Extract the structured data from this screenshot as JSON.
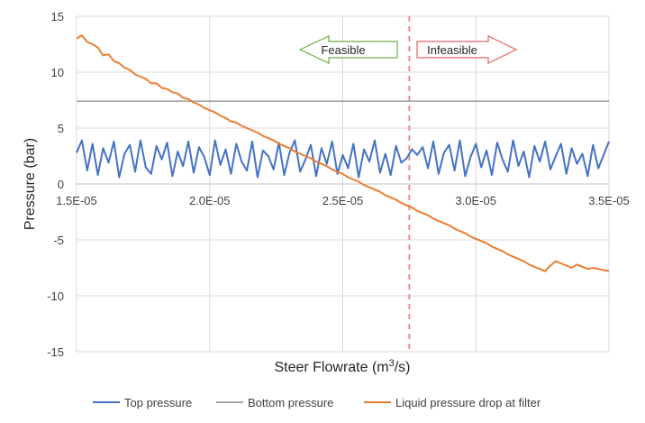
{
  "chart_data": {
    "type": "line",
    "title": "",
    "xlabel_main": "Steer Flowrate (m",
    "xlabel_sup": "3",
    "xlabel_end": "/s)",
    "ylabel": "Pressure (bar)",
    "xlim": [
      1.5e-05,
      3.5e-05
    ],
    "ylim": [
      -15,
      15
    ],
    "x_ticks": [
      1.5e-05,
      2e-05,
      2.5e-05,
      3e-05,
      3.5e-05
    ],
    "x_tick_labels": [
      "1.5E-05",
      "2.0E-05",
      "2.5E-05",
      "3.0E-05",
      "3.5E-05"
    ],
    "y_ticks": [
      15,
      10,
      5,
      0,
      -5,
      -10,
      -15
    ],
    "y_tick_labels": [
      "15",
      "10",
      "5",
      "0",
      "-5",
      "-10",
      "-15"
    ],
    "grid": true,
    "legend_position": "bottom",
    "threshold_x": 2.75e-05,
    "series": [
      {
        "name": "Top pressure",
        "color": "#4472C4",
        "x": [
          1.5e-05,
          1.52e-05,
          1.54e-05,
          1.56e-05,
          1.58e-05,
          1.6e-05,
          1.62e-05,
          1.64e-05,
          1.66e-05,
          1.68e-05,
          1.7e-05,
          1.72e-05,
          1.74e-05,
          1.76e-05,
          1.78e-05,
          1.8e-05,
          1.82e-05,
          1.84e-05,
          1.86e-05,
          1.88e-05,
          1.9e-05,
          1.92e-05,
          1.94e-05,
          1.96e-05,
          1.98e-05,
          2e-05,
          2.02e-05,
          2.04e-05,
          2.06e-05,
          2.08e-05,
          2.1e-05,
          2.12e-05,
          2.14e-05,
          2.16e-05,
          2.18e-05,
          2.2e-05,
          2.22e-05,
          2.24e-05,
          2.26e-05,
          2.28e-05,
          2.3e-05,
          2.32e-05,
          2.34e-05,
          2.36e-05,
          2.38e-05,
          2.4e-05,
          2.42e-05,
          2.44e-05,
          2.46e-05,
          2.48e-05,
          2.5e-05,
          2.52e-05,
          2.54e-05,
          2.56e-05,
          2.58e-05,
          2.6e-05,
          2.62e-05,
          2.64e-05,
          2.66e-05,
          2.68e-05,
          2.7e-05,
          2.72e-05,
          2.74e-05,
          2.76e-05,
          2.78e-05,
          2.8e-05,
          2.82e-05,
          2.84e-05,
          2.86e-05,
          2.88e-05,
          2.9e-05,
          2.92e-05,
          2.94e-05,
          2.96e-05,
          2.98e-05,
          3e-05,
          3.02e-05,
          3.04e-05,
          3.06e-05,
          3.08e-05,
          3.1e-05,
          3.12e-05,
          3.14e-05,
          3.16e-05,
          3.18e-05,
          3.2e-05,
          3.22e-05,
          3.24e-05,
          3.26e-05,
          3.28e-05,
          3.3e-05,
          3.32e-05,
          3.34e-05,
          3.36e-05,
          3.38e-05,
          3.4e-05,
          3.42e-05,
          3.44e-05,
          3.46e-05,
          3.48e-05,
          3.5e-05
        ],
        "values": [
          2.8,
          3.9,
          1.2,
          3.6,
          0.8,
          3.2,
          1.9,
          3.8,
          0.6,
          2.7,
          3.5,
          1.1,
          3.9,
          1.5,
          0.9,
          3.4,
          2.2,
          3.7,
          0.7,
          2.9,
          1.6,
          3.8,
          1.0,
          3.3,
          2.4,
          0.8,
          3.9,
          1.7,
          3.1,
          0.9,
          3.6,
          2.0,
          1.2,
          3.8,
          0.6,
          3.0,
          2.5,
          1.3,
          3.7,
          0.8,
          2.8,
          3.9,
          1.1,
          2.2,
          3.5,
          0.7,
          3.2,
          1.8,
          3.8,
          0.9,
          2.6,
          1.4,
          3.6,
          0.6,
          3.1,
          2.0,
          3.9,
          1.0,
          2.7,
          0.8,
          3.4,
          1.9,
          2.3,
          3.1,
          2.6,
          3.3,
          1.4,
          3.8,
          0.9,
          2.8,
          3.5,
          1.2,
          3.9,
          0.7,
          2.4,
          3.6,
          1.5,
          3.0,
          0.8,
          3.7,
          2.2,
          1.1,
          3.9,
          1.6,
          2.9,
          0.6,
          3.4,
          2.0,
          3.8,
          1.3,
          2.5,
          3.6,
          0.9,
          3.2,
          1.8,
          2.7,
          0.7,
          3.5,
          1.4,
          2.6,
          3.8
        ]
      },
      {
        "name": "Bottom pressure",
        "color": "#A5A5A5",
        "x": [
          1.5e-05,
          3.5e-05
        ],
        "values": [
          7.4,
          7.4
        ]
      },
      {
        "name": "Liquid pressure drop at filter",
        "color": "#ED7D31",
        "x": [
          1.5e-05,
          1.52e-05,
          1.54e-05,
          1.56e-05,
          1.58e-05,
          1.6e-05,
          1.62e-05,
          1.64e-05,
          1.66e-05,
          1.68e-05,
          1.7e-05,
          1.72e-05,
          1.74e-05,
          1.76e-05,
          1.78e-05,
          1.8e-05,
          1.82e-05,
          1.84e-05,
          1.86e-05,
          1.88e-05,
          1.9e-05,
          1.92e-05,
          1.94e-05,
          1.96e-05,
          1.98e-05,
          2e-05,
          2.02e-05,
          2.04e-05,
          2.06e-05,
          2.08e-05,
          2.1e-05,
          2.12e-05,
          2.14e-05,
          2.16e-05,
          2.18e-05,
          2.2e-05,
          2.22e-05,
          2.24e-05,
          2.26e-05,
          2.28e-05,
          2.3e-05,
          2.32e-05,
          2.34e-05,
          2.36e-05,
          2.38e-05,
          2.4e-05,
          2.42e-05,
          2.44e-05,
          2.46e-05,
          2.48e-05,
          2.5e-05,
          2.52e-05,
          2.54e-05,
          2.56e-05,
          2.58e-05,
          2.6e-05,
          2.62e-05,
          2.64e-05,
          2.66e-05,
          2.68e-05,
          2.7e-05,
          2.72e-05,
          2.74e-05,
          2.76e-05,
          2.78e-05,
          2.8e-05,
          2.82e-05,
          2.84e-05,
          2.86e-05,
          2.88e-05,
          2.9e-05,
          2.92e-05,
          2.94e-05,
          2.96e-05,
          2.98e-05,
          3e-05,
          3.02e-05,
          3.04e-05,
          3.06e-05,
          3.08e-05,
          3.1e-05,
          3.12e-05,
          3.14e-05,
          3.16e-05,
          3.18e-05,
          3.2e-05,
          3.22e-05,
          3.24e-05,
          3.26e-05,
          3.28e-05,
          3.3e-05,
          3.32e-05,
          3.34e-05,
          3.36e-05,
          3.38e-05,
          3.4e-05,
          3.42e-05,
          3.44e-05,
          3.46e-05,
          3.48e-05,
          3.5e-05
        ],
        "values": [
          13.0,
          13.3,
          12.7,
          12.5,
          12.2,
          11.5,
          11.6,
          11.0,
          10.8,
          10.4,
          10.2,
          9.8,
          9.6,
          9.4,
          9.0,
          9.0,
          8.6,
          8.5,
          8.2,
          8.1,
          7.7,
          7.6,
          7.3,
          7.1,
          6.8,
          6.6,
          6.4,
          6.1,
          5.9,
          5.6,
          5.5,
          5.2,
          5.0,
          4.8,
          4.6,
          4.3,
          4.1,
          3.9,
          3.6,
          3.4,
          3.2,
          2.9,
          2.7,
          2.5,
          2.3,
          2.0,
          1.8,
          1.6,
          1.3,
          1.1,
          0.9,
          0.6,
          0.4,
          0.2,
          -0.1,
          -0.3,
          -0.5,
          -0.7,
          -1.0,
          -1.2,
          -1.4,
          -1.7,
          -1.9,
          -2.1,
          -2.4,
          -2.6,
          -2.8,
          -3.1,
          -3.3,
          -3.5,
          -3.7,
          -4.0,
          -4.2,
          -4.4,
          -4.7,
          -4.9,
          -5.1,
          -5.3,
          -5.6,
          -5.8,
          -6.0,
          -6.3,
          -6.5,
          -6.7,
          -6.9,
          -7.2,
          -7.4,
          -7.6,
          -7.8,
          -7.3,
          -6.9,
          -7.1,
          -7.3,
          -7.5,
          -7.2,
          -7.4,
          -7.6,
          -7.5,
          -7.6,
          -7.7,
          -7.8
        ]
      }
    ],
    "annotations": [
      {
        "label": "Feasible",
        "direction": "left",
        "color": "#70AD47",
        "position": "left-of-threshold"
      },
      {
        "label": "Infeasible",
        "direction": "right",
        "color": "#E06666",
        "position": "right-of-threshold"
      }
    ]
  }
}
